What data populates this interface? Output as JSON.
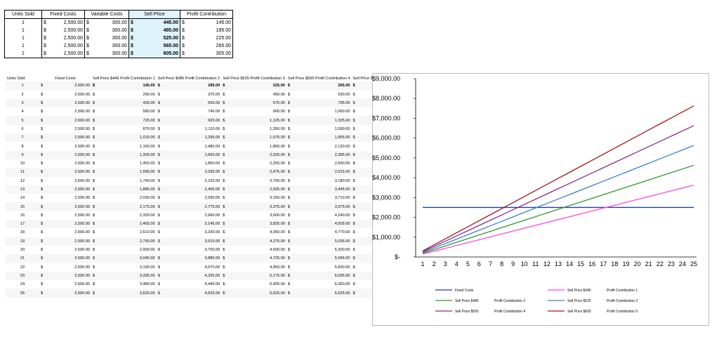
{
  "top_table": {
    "headers": [
      "Units Sold",
      "Fixed Costs",
      "Variable Costs",
      "Sell Price",
      "Profit Contribution"
    ],
    "currency": "$",
    "rows": [
      {
        "units": "1",
        "fixed": "2,500.00",
        "variable": "300.00",
        "price": "445.00",
        "profit": "145.00"
      },
      {
        "units": "1",
        "fixed": "2,500.00",
        "variable": "300.00",
        "price": "485.00",
        "profit": "185.00"
      },
      {
        "units": "1",
        "fixed": "2,500.00",
        "variable": "300.00",
        "price": "525.00",
        "profit": "225.00"
      },
      {
        "units": "1",
        "fixed": "2,500.00",
        "variable": "300.00",
        "price": "565.00",
        "profit": "265.00"
      },
      {
        "units": "1",
        "fixed": "2,500.00",
        "variable": "300.00",
        "price": "605.00",
        "profit": "305.00"
      }
    ]
  },
  "big_table": {
    "headers": [
      "Units Sold",
      "Fixed Costs",
      "Sell Price $445 Profit Contribution 1",
      "Sell Price $485 Profit Contribution 2",
      "Sell Price $525 Profit Contribution 3",
      "Sell Price $565 Profit Contribution 4",
      "Sell Price $605 Profit Contribution 5"
    ],
    "currency": "$",
    "fixed": "2,500.00"
  },
  "chart_data": {
    "type": "line",
    "title": "",
    "x": [
      1,
      2,
      3,
      4,
      5,
      6,
      7,
      8,
      9,
      10,
      11,
      12,
      13,
      14,
      15,
      16,
      17,
      18,
      19,
      20,
      21,
      22,
      23,
      24,
      25
    ],
    "ylim": [
      0,
      9000
    ],
    "ytick_labels": [
      "$-",
      "$1,000.00",
      "$2,000.00",
      "$3,000.00",
      "$4,000.00",
      "$5,000.00",
      "$6,000.00",
      "$7,000.00",
      "$8,000.00",
      "$9,000.00"
    ],
    "grid": false,
    "legend": "bottom",
    "series": [
      {
        "name": "Fixed Costs",
        "color": "#1f3ea8",
        "unit_profit": 0,
        "fixed": 2500
      },
      {
        "name": "Sell Price $445 Profit Contribution 1",
        "color": "#ff44e6",
        "unit_profit": 145
      },
      {
        "name": "Sell Price $485 Profit Contribution 2",
        "color": "#2f9a2f",
        "unit_profit": 185
      },
      {
        "name": "Sell Price $525 Profit Contribution 3",
        "color": "#3a7fd5",
        "unit_profit": 225
      },
      {
        "name": "Sell Price $565 Profit Contribution 4",
        "color": "#8b2c8f",
        "unit_profit": 265
      },
      {
        "name": "Sell Price $605 Profit Contribution 5",
        "color": "#a01818",
        "unit_profit": 305
      }
    ],
    "legend_labels": [
      [
        "Fixed Costs"
      ],
      [
        "Sell Price $445",
        "Profit Contribution 1"
      ],
      [
        "Sell Price $485",
        "Profit Contribution 2"
      ],
      [
        "Sell Price $525",
        "Profit Contribution 3"
      ],
      [
        "Sell Price $565",
        "Profit Contribution 4"
      ],
      [
        "Sell Price $605",
        "Profit Contribution 5"
      ]
    ]
  }
}
